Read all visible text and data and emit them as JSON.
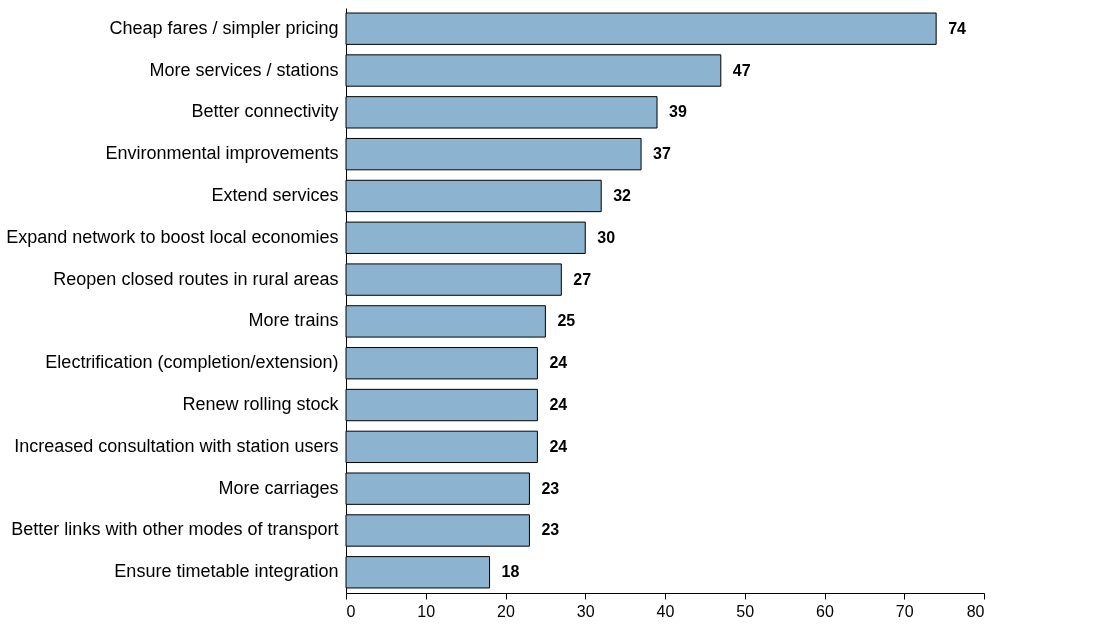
{
  "chart_data": {
    "type": "bar",
    "orientation": "horizontal",
    "categories": [
      "Cheap fares / simpler pricing",
      "More services / stations",
      "Better connectivity",
      "Environmental improvements",
      "Extend services",
      "Expand network to boost local economies",
      "Reopen closed routes in rural areas",
      "More trains",
      "Electrification (completion/extension)",
      "Renew rolling stock",
      "Increased consultation with station users",
      "More carriages",
      "Better links with other modes of transport",
      "Ensure timetable integration"
    ],
    "values": [
      74,
      47,
      39,
      37,
      32,
      30,
      27,
      25,
      24,
      24,
      24,
      23,
      23,
      18
    ],
    "color": "#8cb4d0",
    "xlim": [
      0,
      80
    ],
    "xticks": [
      0,
      10,
      20,
      30,
      40,
      50,
      60,
      70,
      80
    ],
    "grid": false,
    "data_labels": true
  }
}
